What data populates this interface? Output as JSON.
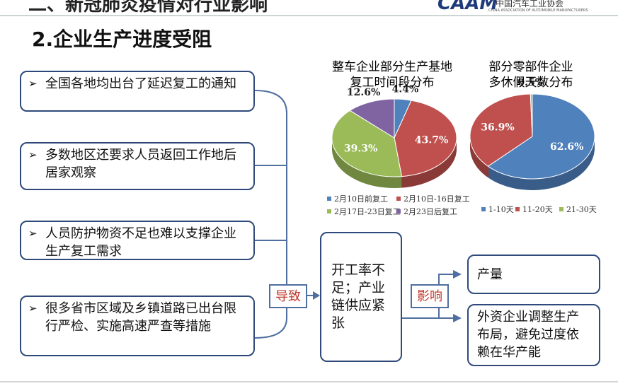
{
  "header": {
    "title": "二、新冠肺炎疫情对行业影响",
    "logo": "CAAM",
    "org": "中国汽车工业协会",
    "org_en": "CHINA ASSOCIATION OF AUTOMOBILE MANUFACTURERS"
  },
  "subtitle": "2.企业生产进度受阻",
  "causes": [
    "全国各地均出台了延迟复工的通知",
    "多数地区还要求人员返回工作地后居家观察",
    "人员防护物资不足也难以支撑企业生产复工需求",
    "很多省市区域及乡镇道路已出台限行严检、实施高速严查等措施"
  ],
  "link1": "导致",
  "middle": "开工率不足；产业链供应紧张",
  "link2": "影响",
  "effects": [
    "产量",
    "外资企业调整生产布局，避免过度依赖在华产能"
  ],
  "chart_data": [
    {
      "type": "pie",
      "title": "整车企业部分生产基地复工时间段分布",
      "categories": [
        "2月10日前复工",
        "2月10日-16日复工",
        "2月17日-23日复工",
        "2月23日后复工"
      ],
      "values": [
        4.4,
        43.7,
        39.3,
        12.6
      ],
      "value_labels": [
        "4.4%",
        "43.7%",
        "39.3%",
        "12.6%"
      ],
      "colors": [
        "#4f81bd",
        "#c0504d",
        "#9bbb59",
        "#8064a2"
      ]
    },
    {
      "type": "pie",
      "title": "部分零部件企业多休假天数分布",
      "categories": [
        "1-10天",
        "11-20天",
        "21-30天"
      ],
      "values": [
        62.6,
        36.9,
        0.5
      ],
      "value_labels": [
        "62.6%",
        "36.9%",
        "0.5%"
      ],
      "colors": [
        "#4f81bd",
        "#c0504d",
        "#9bbb59"
      ]
    }
  ]
}
